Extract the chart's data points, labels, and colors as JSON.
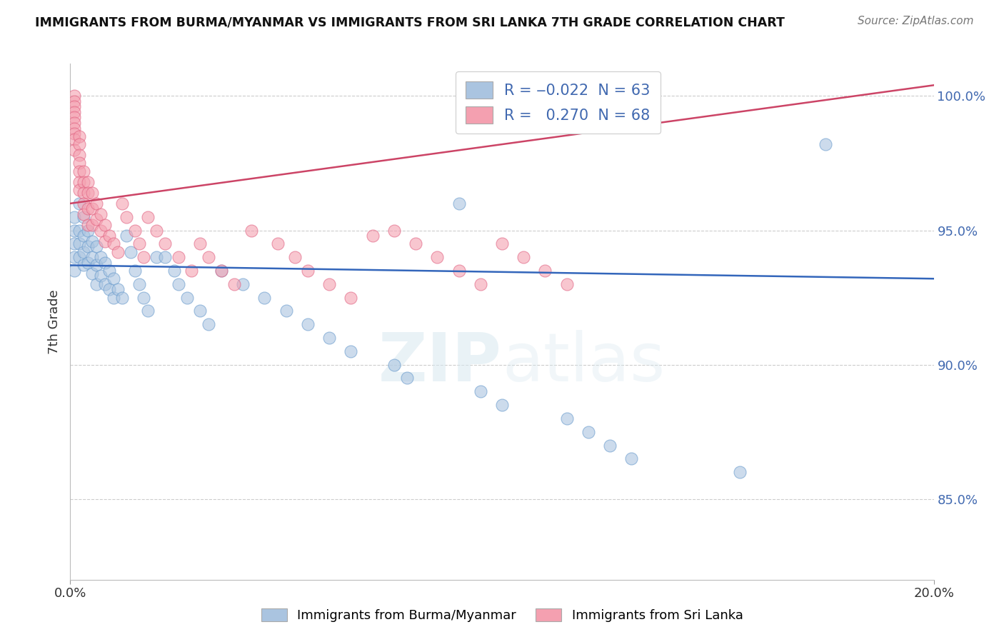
{
  "title": "IMMIGRANTS FROM BURMA/MYANMAR VS IMMIGRANTS FROM SRI LANKA 7TH GRADE CORRELATION CHART",
  "source": "Source: ZipAtlas.com",
  "ylabel": "7th Grade",
  "watermark": "ZIPatlas",
  "legend_labels_bottom": [
    "Immigrants from Burma/Myanmar",
    "Immigrants from Sri Lanka"
  ],
  "blue_color": "#aac4e0",
  "pink_color": "#f4a0b0",
  "blue_edge_color": "#6699cc",
  "pink_edge_color": "#e06080",
  "blue_line_color": "#3366bb",
  "pink_line_color": "#cc4466",
  "xlim": [
    0.0,
    0.2
  ],
  "ylim": [
    0.82,
    1.012
  ],
  "yticks": [
    0.85,
    0.9,
    0.95,
    1.0
  ],
  "ytick_labels": [
    "85.0%",
    "90.0%",
    "95.0%",
    "100.0%"
  ],
  "background_color": "#ffffff",
  "grid_color": "#cccccc",
  "blue_x": [
    0.001,
    0.001,
    0.001,
    0.001,
    0.001,
    0.002,
    0.002,
    0.002,
    0.002,
    0.003,
    0.003,
    0.003,
    0.003,
    0.004,
    0.004,
    0.004,
    0.005,
    0.005,
    0.005,
    0.006,
    0.006,
    0.006,
    0.007,
    0.007,
    0.008,
    0.008,
    0.009,
    0.009,
    0.01,
    0.01,
    0.011,
    0.012,
    0.013,
    0.014,
    0.015,
    0.016,
    0.017,
    0.018,
    0.02,
    0.022,
    0.024,
    0.025,
    0.027,
    0.03,
    0.032,
    0.035,
    0.04,
    0.045,
    0.05,
    0.055,
    0.06,
    0.065,
    0.075,
    0.078,
    0.09,
    0.095,
    0.1,
    0.115,
    0.12,
    0.125,
    0.13,
    0.155,
    0.175
  ],
  "blue_y": [
    0.955,
    0.95,
    0.945,
    0.94,
    0.935,
    0.96,
    0.95,
    0.945,
    0.94,
    0.955,
    0.948,
    0.942,
    0.937,
    0.95,
    0.944,
    0.938,
    0.946,
    0.94,
    0.934,
    0.944,
    0.937,
    0.93,
    0.94,
    0.933,
    0.938,
    0.93,
    0.935,
    0.928,
    0.932,
    0.925,
    0.928,
    0.925,
    0.948,
    0.942,
    0.935,
    0.93,
    0.925,
    0.92,
    0.94,
    0.94,
    0.935,
    0.93,
    0.925,
    0.92,
    0.915,
    0.935,
    0.93,
    0.925,
    0.92,
    0.915,
    0.91,
    0.905,
    0.9,
    0.895,
    0.96,
    0.89,
    0.885,
    0.88,
    0.875,
    0.87,
    0.865,
    0.86,
    0.982
  ],
  "pink_x": [
    0.001,
    0.001,
    0.001,
    0.001,
    0.001,
    0.001,
    0.001,
    0.001,
    0.001,
    0.001,
    0.002,
    0.002,
    0.002,
    0.002,
    0.002,
    0.002,
    0.002,
    0.003,
    0.003,
    0.003,
    0.003,
    0.003,
    0.004,
    0.004,
    0.004,
    0.004,
    0.005,
    0.005,
    0.005,
    0.006,
    0.006,
    0.007,
    0.007,
    0.008,
    0.008,
    0.009,
    0.01,
    0.011,
    0.012,
    0.013,
    0.015,
    0.016,
    0.017,
    0.018,
    0.02,
    0.022,
    0.025,
    0.028,
    0.03,
    0.032,
    0.035,
    0.038,
    0.042,
    0.048,
    0.052,
    0.055,
    0.06,
    0.065,
    0.07,
    0.075,
    0.08,
    0.085,
    0.09,
    0.095,
    0.1,
    0.105,
    0.11,
    0.115
  ],
  "pink_y": [
    1.0,
    0.998,
    0.996,
    0.994,
    0.992,
    0.99,
    0.988,
    0.986,
    0.984,
    0.98,
    0.985,
    0.982,
    0.978,
    0.975,
    0.972,
    0.968,
    0.965,
    0.972,
    0.968,
    0.964,
    0.96,
    0.956,
    0.968,
    0.964,
    0.958,
    0.952,
    0.964,
    0.958,
    0.952,
    0.96,
    0.954,
    0.956,
    0.95,
    0.952,
    0.946,
    0.948,
    0.945,
    0.942,
    0.96,
    0.955,
    0.95,
    0.945,
    0.94,
    0.955,
    0.95,
    0.945,
    0.94,
    0.935,
    0.945,
    0.94,
    0.935,
    0.93,
    0.95,
    0.945,
    0.94,
    0.935,
    0.93,
    0.925,
    0.948,
    0.95,
    0.945,
    0.94,
    0.935,
    0.93,
    0.945,
    0.94,
    0.935,
    0.93
  ]
}
